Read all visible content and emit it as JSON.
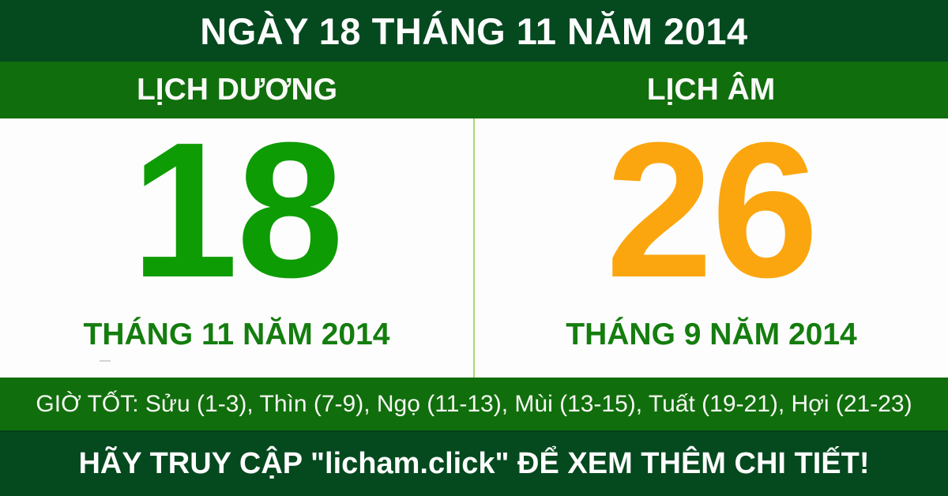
{
  "header": {
    "title": "NGÀY 18 THÁNG 11 NĂM 2014"
  },
  "calendars": {
    "solar": {
      "label": "LỊCH DƯƠNG",
      "day": "18",
      "month_year": "THÁNG 11 NĂM 2014"
    },
    "lunar": {
      "label": "LỊCH ÂM",
      "day": "26",
      "month_year": "THÁNG 9 NĂM 2014"
    }
  },
  "good_hours": {
    "text": "GIỜ TỐT: Sửu (1-3), Thìn (7-9), Ngọ (11-13), Mùi (13-15), Tuất (19-21), Hợi (21-23)"
  },
  "footer": {
    "text": "HÃY TRUY CẬP \"licham.click\" ĐỂ XEM THÊM CHI TIẾT!"
  },
  "colors": {
    "dark_green": "#05491f",
    "bar_green": "#116e0d",
    "solar_day_green": "#0e9c04",
    "lunar_day_orange": "#fba60f",
    "month_label_green": "#147d0e",
    "divider_light_green": "#a9d96d",
    "panel_white": "#fdfdfd",
    "text_white": "#fdfdfd"
  }
}
